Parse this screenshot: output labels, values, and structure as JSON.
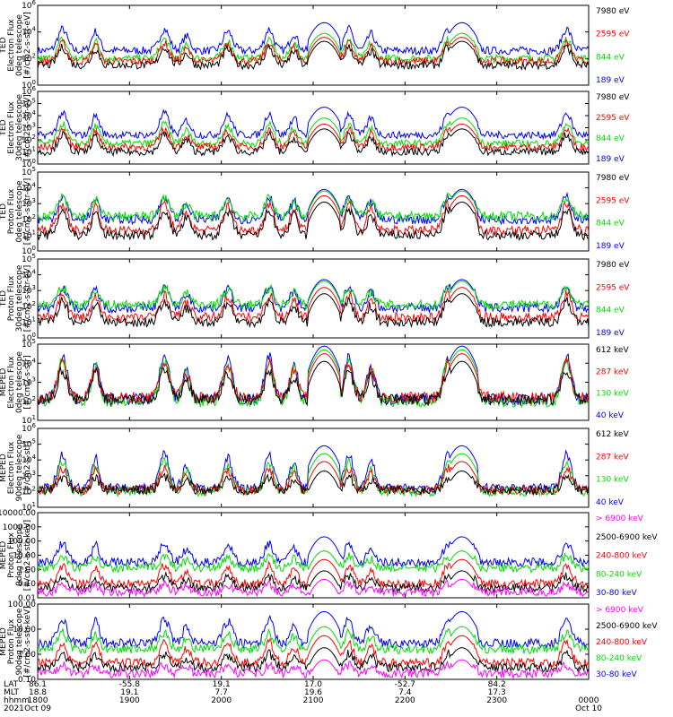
{
  "colors": {
    "black": "#000000",
    "red": "#ff0000",
    "green": "#00dd00",
    "blue": "#0000ff",
    "magenta": "#ff00ff"
  },
  "chart_data": [
    {
      "type": "line",
      "ylabel": [
        "TED",
        "Electron Flux",
        "0deg telescope",
        "[#/cm2-s-str-eV]"
      ],
      "log": true,
      "ylim_exp": [
        0,
        6
      ],
      "yticks": [
        "10^0",
        "10^2",
        "10^4",
        "10^6"
      ],
      "series": [
        {
          "name": "7980 eV",
          "color": "black",
          "base": 1.5,
          "peak": 3.0
        },
        {
          "name": "2595 eV",
          "color": "red",
          "base": 1.8,
          "peak": 3.3
        },
        {
          "name": "844 eV",
          "color": "green",
          "base": 2.0,
          "peak": 3.6
        },
        {
          "name": "189 eV",
          "color": "blue",
          "base": 2.6,
          "peak": 4.4
        }
      ]
    },
    {
      "type": "line",
      "ylabel": [
        "TED",
        "Electron Flux",
        "30deg telescope",
        "[#/cm2-s-str-eV]"
      ],
      "log": true,
      "ylim_exp": [
        0,
        6
      ],
      "yticks": [
        "10^0",
        "10^1",
        "10^2",
        "10^3",
        "10^4",
        "10^5",
        "10^6"
      ],
      "series": [
        {
          "name": "7980 eV",
          "color": "black",
          "base": 1.0,
          "peak": 2.6
        },
        {
          "name": "2595 eV",
          "color": "red",
          "base": 1.4,
          "peak": 3.0
        },
        {
          "name": "844 eV",
          "color": "green",
          "base": 1.7,
          "peak": 3.5
        },
        {
          "name": "189 eV",
          "color": "blue",
          "base": 2.4,
          "peak": 4.4
        }
      ]
    },
    {
      "type": "line",
      "ylabel": [
        "TED",
        "Proton Flux",
        "0deg telescope",
        "[#/cm2-s-str-eV]"
      ],
      "log": true,
      "ylim_exp": [
        0,
        5
      ],
      "yticks": [
        "10^0",
        "10^1",
        "10^2",
        "10^3",
        "10^4",
        "10^5"
      ],
      "series": [
        {
          "name": "7980 eV",
          "color": "black",
          "base": 1.0,
          "peak": 2.8
        },
        {
          "name": "2595 eV",
          "color": "red",
          "base": 1.3,
          "peak": 3.2
        },
        {
          "name": "844 eV",
          "color": "green",
          "base": 2.2,
          "peak": 3.5
        },
        {
          "name": "189 eV",
          "color": "blue",
          "base": 2.0,
          "peak": 3.6
        }
      ]
    },
    {
      "type": "line",
      "ylabel": [
        "TED",
        "Proton Flux",
        "30deg telescope",
        "[#/cm2-s-str-eV]"
      ],
      "log": true,
      "ylim_exp": [
        0,
        5
      ],
      "yticks": [
        "10^0",
        "10^1",
        "10^2",
        "10^3",
        "10^4",
        "10^5"
      ],
      "series": [
        {
          "name": "7980 eV",
          "color": "black",
          "base": 1.0,
          "peak": 2.5
        },
        {
          "name": "2595 eV",
          "color": "red",
          "base": 1.3,
          "peak": 2.9
        },
        {
          "name": "844 eV",
          "color": "green",
          "base": 2.1,
          "peak": 3.3
        },
        {
          "name": "189 eV",
          "color": "blue",
          "base": 1.9,
          "peak": 3.4
        }
      ]
    },
    {
      "type": "line",
      "ylabel": [
        "MEPED",
        "Electron Flux",
        "0deg telescope",
        "[#/cm2-s-str]"
      ],
      "log": true,
      "ylim_exp": [
        1,
        5
      ],
      "yticks": [
        "10^1",
        "10^2",
        "10^3",
        "10^4",
        "10^5"
      ],
      "series": [
        {
          "name": "612 keV",
          "color": "black",
          "base": 2.1,
          "peak": 3.8
        },
        {
          "name": "287 keV",
          "color": "red",
          "base": 2.2,
          "peak": 4.2
        },
        {
          "name": "130 keV",
          "color": "green",
          "base": 2.0,
          "peak": 4.4
        },
        {
          "name": "40 keV",
          "color": "blue",
          "base": 2.1,
          "peak": 4.6
        }
      ]
    },
    {
      "type": "line",
      "ylabel": [
        "MEPED",
        "Electron Flux",
        "90deg telescope",
        "[#/cm2-s-str]"
      ],
      "log": true,
      "ylim_exp": [
        1,
        6
      ],
      "yticks": [
        "10^1",
        "10^2",
        "10^3",
        "10^4",
        "10^5",
        "10^6"
      ],
      "series": [
        {
          "name": "612 keV",
          "color": "black",
          "base": 2.1,
          "peak": 3.0
        },
        {
          "name": "287 keV",
          "color": "red",
          "base": 2.1,
          "peak": 3.6
        },
        {
          "name": "130 keV",
          "color": "green",
          "base": 2.0,
          "peak": 4.1
        },
        {
          "name": "40 keV",
          "color": "blue",
          "base": 2.2,
          "peak": 4.6
        }
      ]
    },
    {
      "type": "line",
      "ylabel": [
        "MEPED",
        "Proton Flux",
        "0deg telescope",
        "[#/cm2-s-str-keV]"
      ],
      "log": true,
      "ylim_exp": [
        -2,
        4
      ],
      "yticks": [
        "0.01",
        "0.10",
        "1.00",
        "10.00",
        "100.00",
        "1000.00",
        "10000.00"
      ],
      "series": [
        {
          "name": "> 6900 keV",
          "color": "magenta",
          "base": -1.6,
          "peak": -1.0
        },
        {
          "name": "2500-6900 keV",
          "color": "black",
          "base": -1.3,
          "peak": -0.4
        },
        {
          "name": "240-800 keV",
          "color": "red",
          "base": -1.0,
          "peak": 0.4
        },
        {
          "name": "80-240 keV",
          "color": "green",
          "base": 0.1,
          "peak": 1.0
        },
        {
          "name": "30-80 keV",
          "color": "blue",
          "base": 0.5,
          "peak": 2.0
        }
      ]
    },
    {
      "type": "line",
      "ylabel": [
        "MEPED",
        "Proton Flux",
        "90deg telescope",
        "[#/cm2-s-str-keV]"
      ],
      "log": true,
      "ylim_exp": [
        -2,
        3
      ],
      "yticks": [
        "0.10",
        "1.00",
        "10.00",
        "100.00"
      ],
      "series": [
        {
          "name": "> 6900 keV",
          "color": "magenta",
          "base": -1.6,
          "peak": -1.0
        },
        {
          "name": "2500-6900 keV",
          "color": "black",
          "base": -1.2,
          "peak": -0.2
        },
        {
          "name": "240-800 keV",
          "color": "red",
          "base": -0.9,
          "peak": 0.6
        },
        {
          "name": "80-240 keV",
          "color": "green",
          "base": 0.0,
          "peak": 1.2
        },
        {
          "name": "30-80 keV",
          "color": "blue",
          "base": 0.4,
          "peak": 2.2
        }
      ]
    }
  ],
  "xaxis": {
    "row_labels": [
      "LAT",
      "MLT",
      "hhmm",
      "2021"
    ],
    "ticks": [
      {
        "lat": "86.1",
        "mlt": "18.8",
        "hhmm": "1800",
        "date": "Oct 09"
      },
      {
        "lat": "-55.8",
        "mlt": "19.1",
        "hhmm": "1900",
        "date": ""
      },
      {
        "lat": "19.1",
        "mlt": "7.7",
        "hhmm": "2000",
        "date": ""
      },
      {
        "lat": "17.0",
        "mlt": "19.6",
        "hhmm": "2100",
        "date": ""
      },
      {
        "lat": "-52.7",
        "mlt": "7.4",
        "hhmm": "2200",
        "date": ""
      },
      {
        "lat": "84.2",
        "mlt": "17.3",
        "hhmm": "2300",
        "date": ""
      },
      {
        "lat": "",
        "mlt": "",
        "hhmm": "0000",
        "date": "Oct 10"
      }
    ]
  }
}
